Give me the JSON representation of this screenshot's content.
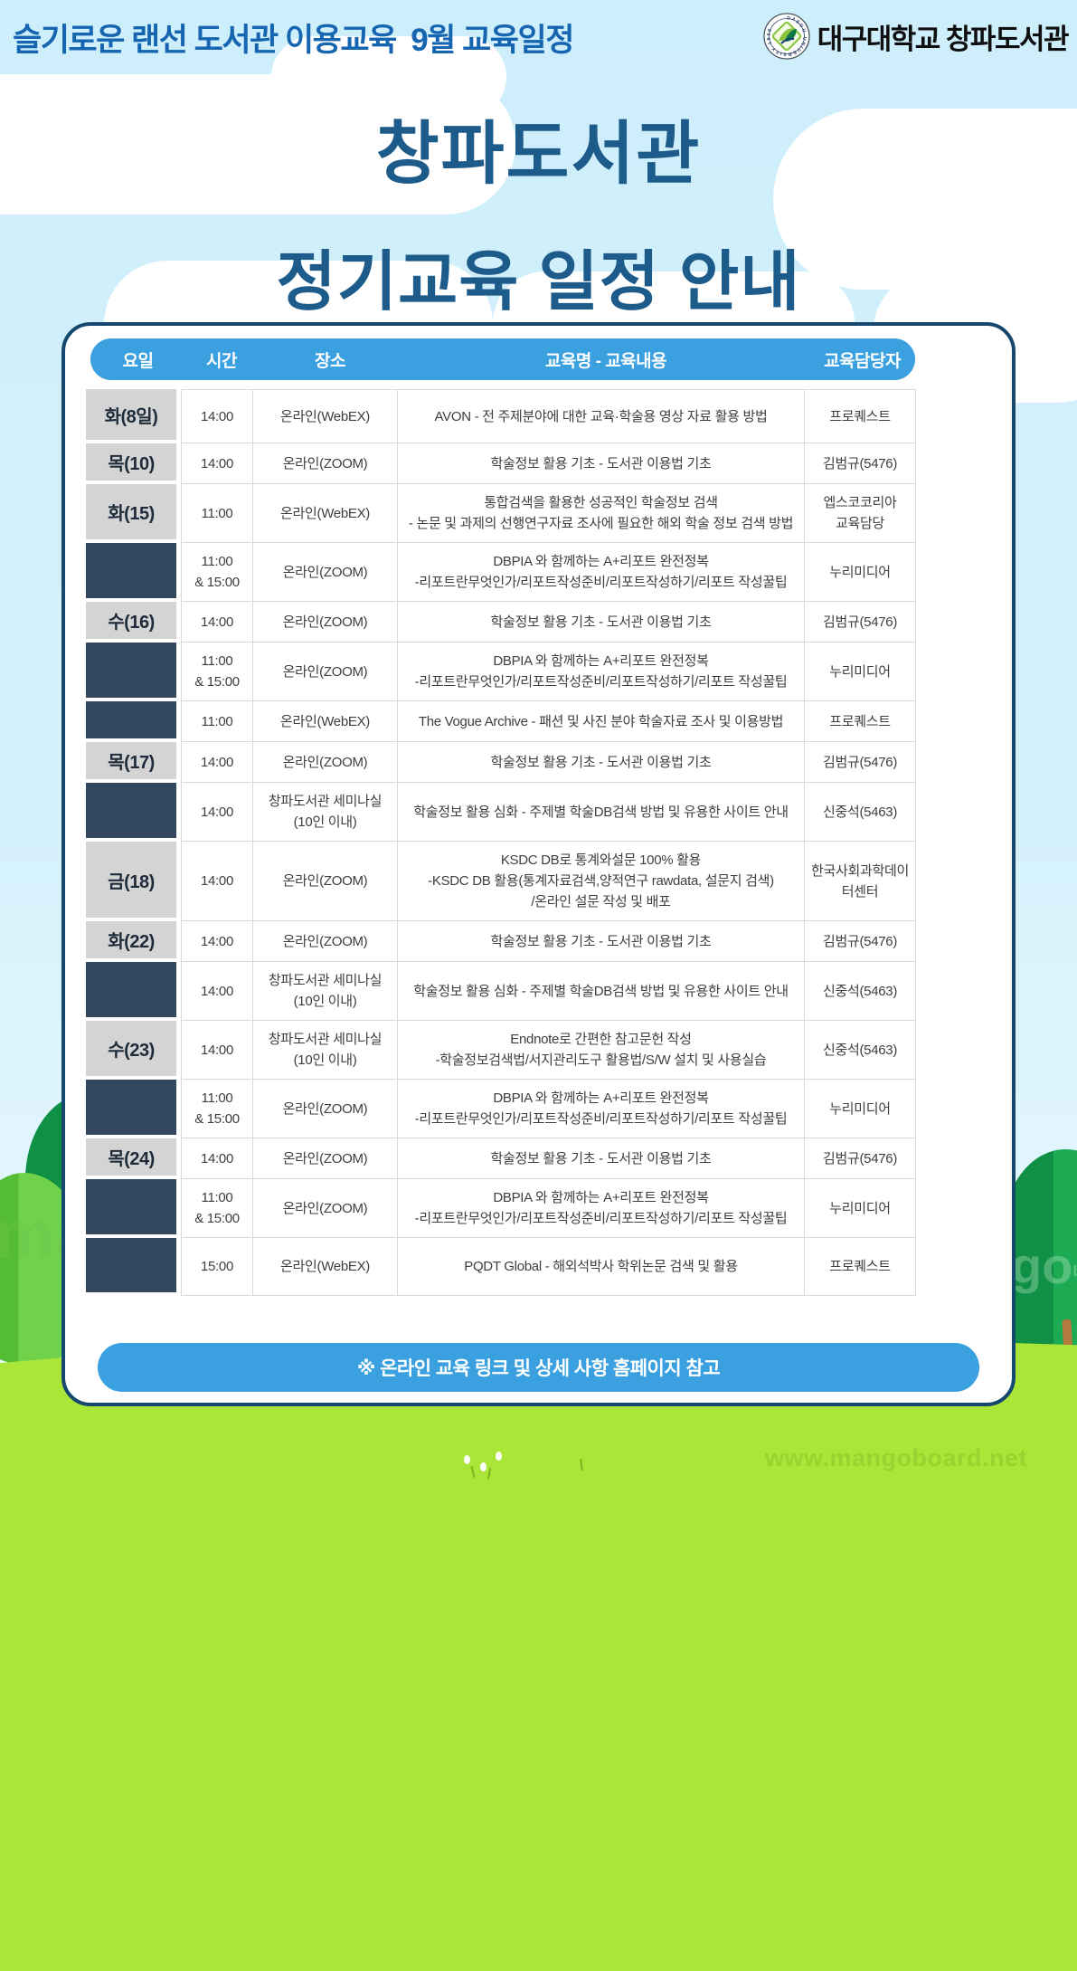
{
  "topbar": {
    "title": "슬기로운 랜선 도서관 이용교육  9월 교육일정",
    "logo_text": "대구대학교 창파도서관",
    "emblem_ring_text": "DAEGU UNIVERSITY 1956"
  },
  "hero": {
    "title_line1": "창파도서관",
    "title_line2": "정기교육 일정 안내"
  },
  "table": {
    "headers": [
      "요일",
      "시간",
      "장소",
      "교육명 - 교육내용",
      "교육담당자"
    ],
    "rows": [
      {
        "day": "화(8일)",
        "time": [
          "14:00"
        ],
        "place": [
          "온라인(WebEX)"
        ],
        "content": [
          "AVON - 전 주제분야에 대한 교육·학술용 영상 자료 활용 방법"
        ],
        "person": [
          "프로퀘스트"
        ]
      },
      {
        "day": "목(10)",
        "time": [
          "14:00"
        ],
        "place": [
          "온라인(ZOOM)"
        ],
        "content": [
          "학술정보 활용 기초 - 도서관 이용법 기초"
        ],
        "person": [
          "김범규(5476)"
        ]
      },
      {
        "day": "화(15)",
        "time": [
          "11:00"
        ],
        "place": [
          "온라인(WebEX)"
        ],
        "content": [
          "통합검색을 활용한 성공적인 학술정보 검색",
          "- 논문 및 과제의 선행연구자료 조사에 필요한 해외 학술 정보 검색 방법"
        ],
        "person": [
          "엡스코코리아",
          "교육담당"
        ]
      },
      {
        "day": "",
        "time": [
          "11:00",
          "& 15:00"
        ],
        "place": [
          "온라인(ZOOM)"
        ],
        "content": [
          "DBPIA 와 함께하는 A+리포트 완전정복",
          "-리포트란무엇인가/리포트작성준비/리포트작성하기/리포트 작성꿀팁"
        ],
        "person": [
          "누리미디어"
        ]
      },
      {
        "day": "수(16)",
        "time": [
          "14:00"
        ],
        "place": [
          "온라인(ZOOM)"
        ],
        "content": [
          "학술정보 활용 기초 - 도서관 이용법 기초"
        ],
        "person": [
          "김범규(5476)"
        ]
      },
      {
        "day": "",
        "time": [
          "11:00",
          "& 15:00"
        ],
        "place": [
          "온라인(ZOOM)"
        ],
        "content": [
          "DBPIA 와 함께하는 A+리포트 완전정복",
          "-리포트란무엇인가/리포트작성준비/리포트작성하기/리포트 작성꿀팁"
        ],
        "person": [
          "누리미디어"
        ]
      },
      {
        "day": "",
        "time": [
          "11:00"
        ],
        "place": [
          "온라인(WebEX)"
        ],
        "content": [
          "The Vogue Archive - 패션 및 사진 분야 학술자료 조사 및 이용방법"
        ],
        "person": [
          "프로퀘스트"
        ]
      },
      {
        "day": "목(17)",
        "time": [
          "14:00"
        ],
        "place": [
          "온라인(ZOOM)"
        ],
        "content": [
          "학술정보 활용 기초 - 도서관 이용법 기초"
        ],
        "person": [
          "김범규(5476)"
        ]
      },
      {
        "day": "",
        "time": [
          "14:00"
        ],
        "place": [
          "창파도서관 세미나실",
          "(10인 이내)"
        ],
        "content": [
          "학술정보 활용 심화 - 주제별 학술DB검색 방법 및 유용한 사이트 안내"
        ],
        "person": [
          "신중석(5463)"
        ]
      },
      {
        "day": "금(18)",
        "time": [
          "14:00"
        ],
        "place": [
          "온라인(ZOOM)"
        ],
        "content": [
          "KSDC DB로 통계와설문 100% 활용",
          "-KSDC DB 활용(통계자료검색,양적연구 rawdata, 설문지 검색)",
          "/온라인 설문 작성 및 배포"
        ],
        "person": [
          "한국사회과학데이",
          "터센터"
        ]
      },
      {
        "day": "화(22)",
        "time": [
          "14:00"
        ],
        "place": [
          "온라인(ZOOM)"
        ],
        "content": [
          "학술정보 활용 기초 - 도서관 이용법 기초"
        ],
        "person": [
          "김범규(5476)"
        ]
      },
      {
        "day": "",
        "time": [
          "14:00"
        ],
        "place": [
          "창파도서관 세미나실",
          "(10인 이내)"
        ],
        "content": [
          "학술정보 활용 심화 - 주제별 학술DB검색 방법 및 유용한 사이트 안내"
        ],
        "person": [
          "신중석(5463)"
        ]
      },
      {
        "day": "수(23)",
        "time": [
          "14:00"
        ],
        "place": [
          "창파도서관 세미나실",
          "(10인 이내)"
        ],
        "content": [
          "Endnote로 간편한 참고문헌 작성",
          "-학술정보검색법/서지관리도구 활용법/S/W 설치 및 사용실습"
        ],
        "person": [
          "신중석(5463)"
        ]
      },
      {
        "day": "",
        "time": [
          "11:00",
          "& 15:00"
        ],
        "place": [
          "온라인(ZOOM)"
        ],
        "content": [
          "DBPIA 와 함께하는 A+리포트 완전정복",
          "-리포트란무엇인가/리포트작성준비/리포트작성하기/리포트 작성꿀팁"
        ],
        "person": [
          "누리미디어"
        ]
      },
      {
        "day": "목(24)",
        "time": [
          "14:00"
        ],
        "place": [
          "온라인(ZOOM)"
        ],
        "content": [
          "학술정보 활용 기초 - 도서관 이용법 기초"
        ],
        "person": [
          "김범규(5476)"
        ]
      },
      {
        "day": "",
        "time": [
          "11:00",
          "& 15:00"
        ],
        "place": [
          "온라인(ZOOM)"
        ],
        "content": [
          "DBPIA 와 함께하는 A+리포트 완전정복",
          "-리포트란무엇인가/리포트작성준비/리포트작성하기/리포트 작성꿀팁"
        ],
        "person": [
          "누리미디어"
        ]
      },
      {
        "day": "",
        "time": [
          "15:00"
        ],
        "place": [
          "온라인(WebEX)"
        ],
        "content": [
          "PQDT Global - 해외석박사 학위논문 검색 및 활용"
        ],
        "person": [
          "프로퀘스트"
        ]
      }
    ]
  },
  "footer": {
    "note": "※ 온라인 교육 링크 및 상세 사항 홈페이지 참고"
  },
  "watermarks": {
    "left_fragment": "ma",
    "right_fragment": "go",
    "right_sub": "board",
    "url": "www.mangoboard.net"
  },
  "colors": {
    "sky": "#cfeefb",
    "header_blue": "#3aa0e0",
    "card_border_navy": "#16486f",
    "hero_title": "#1c5b8a",
    "topbar_title": "#1565b0",
    "day_gray": "#d4d4d4",
    "day_navy": "#33485e",
    "grass_green": "#aae637"
  }
}
